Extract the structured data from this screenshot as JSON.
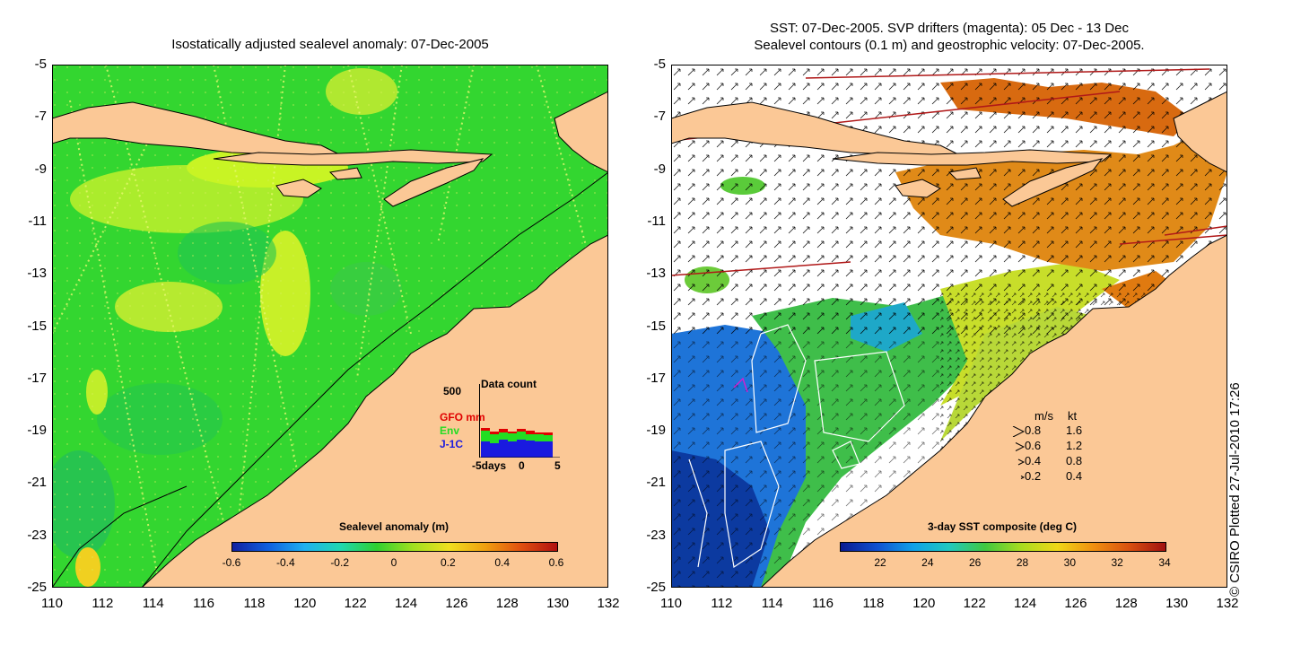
{
  "left_panel": {
    "title": "Isostatically adjusted sealevel anomaly: 07-Dec-2005",
    "colorbar": {
      "title": "Sealevel anomaly (m)",
      "ticks": [
        "-0.6",
        "-0.4",
        "-0.2",
        "0",
        "0.2",
        "0.4",
        "0.6"
      ]
    },
    "inset": {
      "title": "Data count",
      "ymax_label": "500",
      "series": [
        {
          "name": "GFO mm",
          "color": "#e00000"
        },
        {
          "name": "Env",
          "color": "#22dd22"
        },
        {
          "name": "J-1C",
          "color": "#1a1ae0"
        }
      ],
      "x_ticks": [
        "-5days",
        "0",
        "5"
      ]
    }
  },
  "right_panel": {
    "title_line1": "SST: 07-Dec-2005. SVP drifters (magenta): 05 Dec - 13 Dec",
    "title_line2": "Sealevel contours (0.1 m) and geostrophic velocity: 07-Dec-2005.",
    "colorbar": {
      "title": "3-day SST composite (deg C)",
      "ticks": [
        "22",
        "24",
        "26",
        "28",
        "30",
        "32",
        "34"
      ]
    },
    "velocity_legend": {
      "header_ms": "m/s",
      "header_kt": "kt",
      "rows": [
        {
          "ms": "0.8",
          "kt": "1.6"
        },
        {
          "ms": "0.6",
          "kt": "1.2"
        },
        {
          "ms": "0.4",
          "kt": "0.8"
        },
        {
          "ms": "0.2",
          "kt": "0.4"
        }
      ]
    }
  },
  "y_axis_labels": [
    "-5",
    "-7",
    "-9",
    "-11",
    "-13",
    "-15",
    "-17",
    "-19",
    "-21",
    "-23",
    "-25"
  ],
  "x_axis_labels": [
    "110",
    "112",
    "114",
    "116",
    "118",
    "120",
    "122",
    "124",
    "126",
    "128",
    "130",
    "132"
  ],
  "credit": "© CSIRO Plotted 27-Jul-2010 17:26",
  "colors": {
    "land": "#fbc896",
    "sea_green": "#2fd62f",
    "anomaly_yellow": "#c6f028",
    "sst_blue": "#1a6ad8",
    "sst_orange": "#e07a10"
  }
}
